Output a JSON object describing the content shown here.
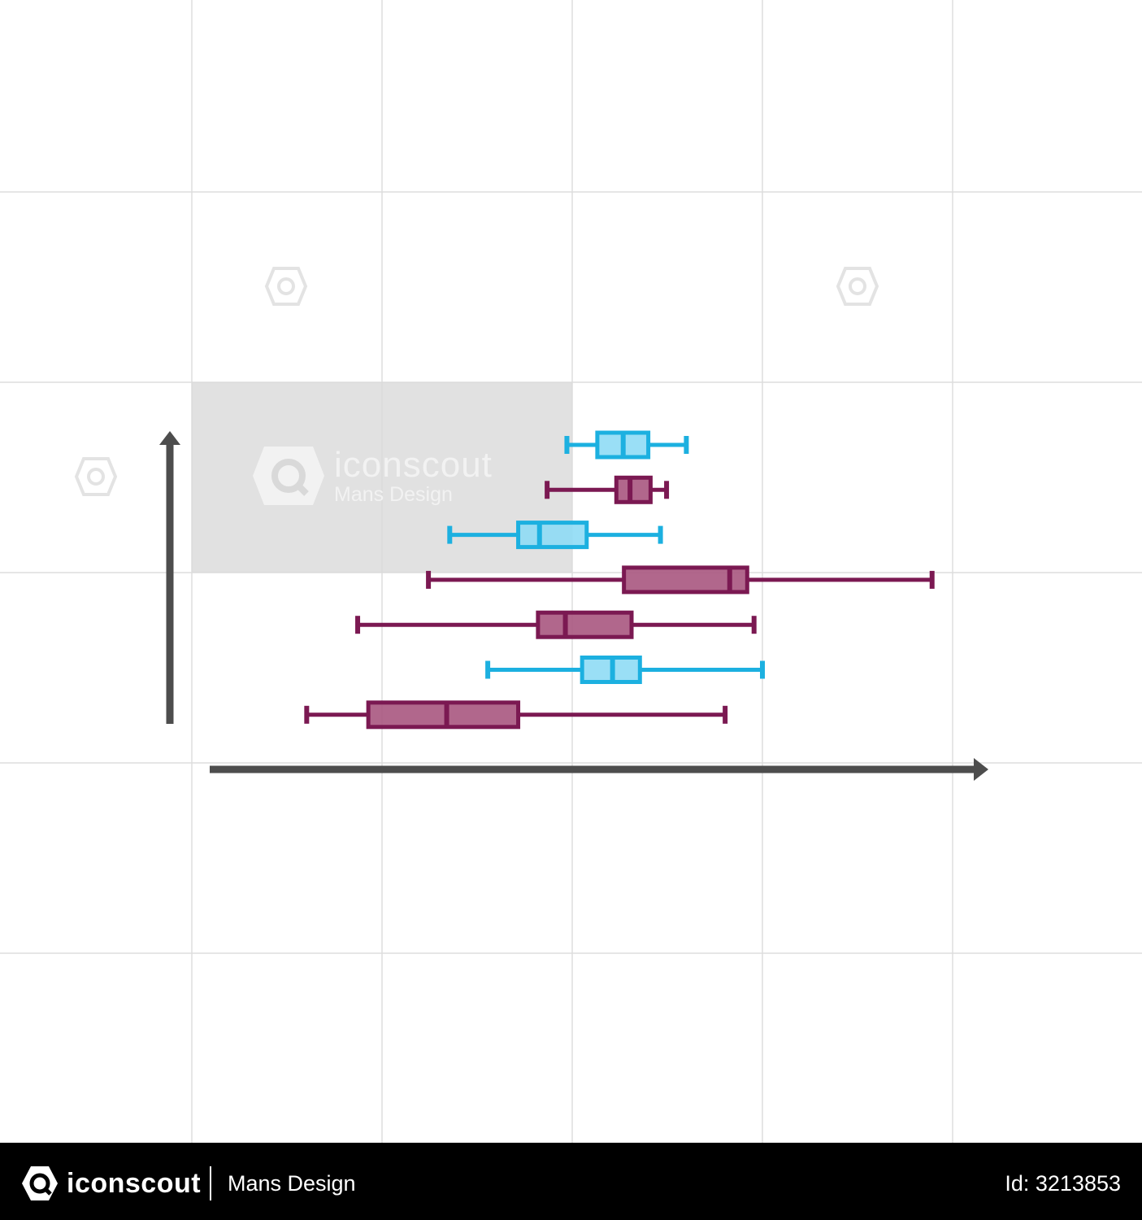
{
  "chart_data": {
    "type": "boxplot",
    "orientation": "horizontal",
    "title": "",
    "xlabel": "",
    "ylabel": "",
    "xlim": [
      0,
      100
    ],
    "grid": true,
    "legend": "none",
    "boxes": [
      {
        "min": 49.3,
        "q1": 53.3,
        "median": 56.7,
        "q3": 60.0,
        "max": 65.0,
        "color": "#1cb0e0",
        "fill": "#8fdcf5"
      },
      {
        "min": 46.7,
        "q1": 55.8,
        "median": 57.6,
        "q3": 60.3,
        "max": 62.4,
        "color": "#7b1952",
        "fill": "#a9577f"
      },
      {
        "min": 33.9,
        "q1": 42.9,
        "median": 45.7,
        "q3": 51.9,
        "max": 61.6,
        "color": "#1cb0e0",
        "fill": "#8fdcf5"
      },
      {
        "min": 31.1,
        "q1": 56.8,
        "median": 70.7,
        "q3": 73.0,
        "max": 97.3,
        "color": "#7b1952",
        "fill": "#a9577f"
      },
      {
        "min": 21.8,
        "q1": 45.5,
        "median": 49.1,
        "q3": 57.8,
        "max": 73.9,
        "color": "#7b1952",
        "fill": "#a9577f"
      },
      {
        "min": 38.9,
        "q1": 51.3,
        "median": 55.3,
        "q3": 58.9,
        "max": 75.0,
        "color": "#1cb0e0",
        "fill": "#8fdcf5"
      },
      {
        "min": 15.1,
        "q1": 23.2,
        "median": 33.5,
        "q3": 42.9,
        "max": 70.1,
        "color": "#7b1952",
        "fill": "#a9577f"
      }
    ]
  },
  "colors": {
    "axis": "#4d4d4d",
    "grid": "#dddddd",
    "cyan": "#1cb0e0",
    "magenta": "#7b1952",
    "watermark_panel": "#e0e0e0"
  },
  "watermark": {
    "brand": "iconscout",
    "author": "Mans Design",
    "icon": "iconscout-logo-icon"
  },
  "footer": {
    "brand": "iconscout",
    "author": "Mans Design",
    "id_text": "Id: 3213853",
    "logo_icon": "iconscout-logo-icon"
  }
}
